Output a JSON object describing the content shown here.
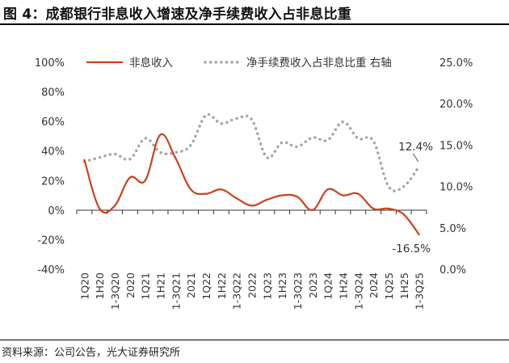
{
  "figure": {
    "title": "图 4：成都银行非息收入增速及净手续费收入占非息比重",
    "source": "资料来源：公司公告，光大证券研究所"
  },
  "chart_data": {
    "type": "line",
    "categories": [
      "1Q20",
      "1H20",
      "1-3Q20",
      "2020",
      "1Q21",
      "1H21",
      "1-3Q21",
      "2021",
      "1Q22",
      "1H22",
      "1-3Q22",
      "2022",
      "1Q23",
      "1H23",
      "1-3Q23",
      "2023",
      "1Q24",
      "1H24",
      "1-3Q24",
      "2024",
      "1Q25",
      "1H25",
      "1-3Q25"
    ],
    "y_left": {
      "min": -40,
      "max": 100,
      "step": 20,
      "ticks": [
        "-40%",
        "-20%",
        "0%",
        "20%",
        "40%",
        "60%",
        "80%",
        "100%"
      ]
    },
    "y_right": {
      "min": 0,
      "max": 25,
      "step": 5,
      "ticks": [
        "0.0%",
        "5.0%",
        "10.0%",
        "15.0%",
        "20.0%",
        "25.0%"
      ]
    },
    "series": [
      {
        "name": "非息收入",
        "axis": "left",
        "style": "solid",
        "color": "#c9431c",
        "values": [
          34,
          1,
          3,
          22,
          20,
          51,
          35,
          14,
          11,
          14,
          8,
          3,
          7,
          10,
          9,
          0,
          14,
          10,
          11,
          1,
          1,
          -3,
          -16.5
        ]
      },
      {
        "name": "净手续费收入占非息比重 右轴",
        "axis": "right",
        "style": "dotted",
        "color": "#a6a6a6",
        "values": [
          13.0,
          13.5,
          13.9,
          13.3,
          15.8,
          14.1,
          14.1,
          15.0,
          18.6,
          17.6,
          18.2,
          18.1,
          13.5,
          15.3,
          14.8,
          15.9,
          15.6,
          17.8,
          15.8,
          15.5,
          10.0,
          10.0,
          12.4
        ]
      }
    ],
    "annotations": [
      {
        "text": "12.4%",
        "series": 1,
        "index": 22
      },
      {
        "text": "-16.5%",
        "series": 0,
        "index": 22
      }
    ],
    "legend_position": "top",
    "grid": false
  }
}
